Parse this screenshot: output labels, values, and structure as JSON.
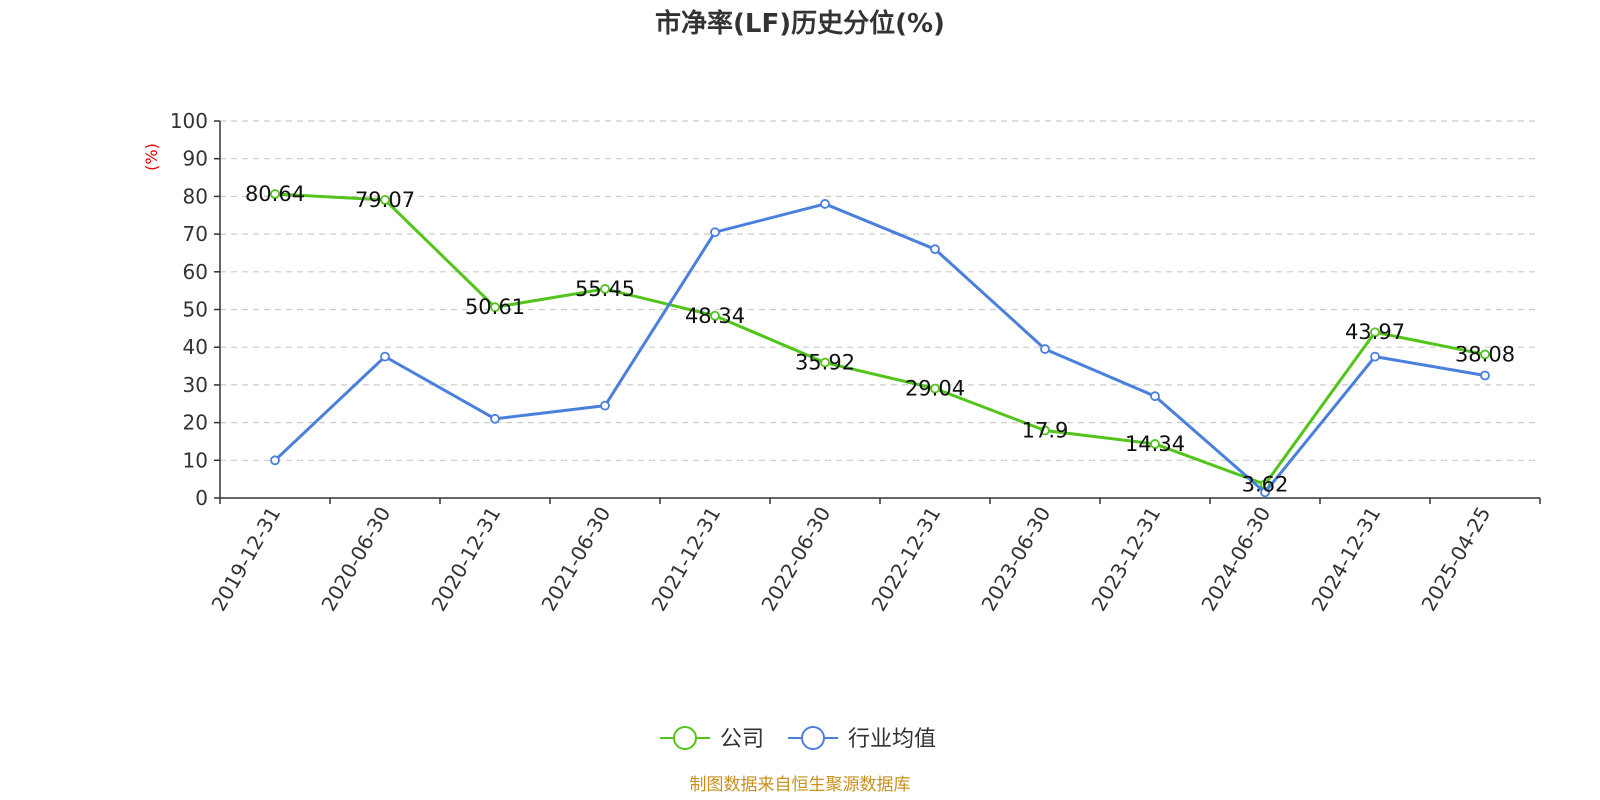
{
  "chart_data": {
    "type": "line",
    "title": "市净率(LF)历史分位(%)",
    "ylabel": "(%)",
    "xlabel": "",
    "categories": [
      "2019-12-31",
      "2020-06-30",
      "2020-12-31",
      "2021-06-30",
      "2021-12-31",
      "2022-06-30",
      "2022-12-31",
      "2023-06-30",
      "2023-12-31",
      "2024-06-30",
      "2024-12-31",
      "2025-04-25"
    ],
    "ylim": [
      0,
      100
    ],
    "yticks": [
      "0",
      "10",
      "20",
      "30",
      "40",
      "50",
      "60",
      "70",
      "80",
      "90",
      "100"
    ],
    "grid": true,
    "legend_position": "bottom",
    "series": [
      {
        "name": "公司",
        "color": "#52c41a",
        "values": [
          80.64,
          79.07,
          50.61,
          55.45,
          48.34,
          35.92,
          29.04,
          17.9,
          14.34,
          3.62,
          43.97,
          38.08
        ],
        "labels": [
          "80.64",
          "79.07",
          "50.61",
          "55.45",
          "48.34",
          "35.92",
          "29.04",
          "17.9",
          "14.34",
          "3.62",
          "43.97",
          "38.08"
        ]
      },
      {
        "name": "行业均值",
        "color": "#4a7fdc",
        "values": [
          10,
          37.5,
          21,
          24.5,
          70.5,
          78,
          66,
          39.5,
          27,
          1.5,
          37.5,
          32.5
        ]
      }
    ]
  },
  "footer": {
    "source": "制图数据来自恒生聚源数据库",
    "source_color": "#c8901c"
  },
  "colors": {
    "ylabel": "#e00000",
    "axis": "#333333",
    "grid": "#cccccc"
  }
}
